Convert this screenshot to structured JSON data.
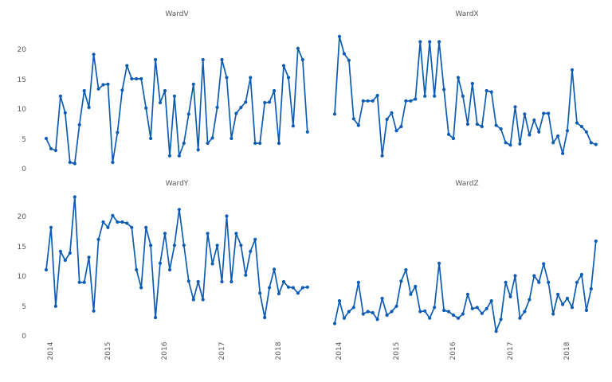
{
  "figure": {
    "background": "#ffffff",
    "text_color": "#595959",
    "line_color": "#0d5cb4"
  },
  "chart_data": {
    "type": "line",
    "layout": "2x2 small multiples, shared x and y axes, no gridlines, no legend, circle markers",
    "x_start": "2013-12",
    "x_interval": "month",
    "n_points": 56,
    "x_tick_labels": [
      "2014",
      "2015",
      "2016",
      "2017",
      "2018"
    ],
    "y_tick_labels": [
      "0",
      "5",
      "10",
      "15",
      "20"
    ],
    "ylim": [
      0,
      24
    ],
    "series": [
      {
        "name": "WardV",
        "values": [
          5.2,
          3.5,
          3.2,
          12.3,
          9.5,
          1.2,
          1.0,
          7.5,
          13.2,
          10.4,
          19.3,
          13.5,
          14.2,
          14.3,
          1.2,
          6.2,
          13.3,
          17.4,
          15.2,
          15.2,
          15.2,
          10.3,
          5.2,
          18.4,
          11.2,
          13.2,
          2.3,
          12.3,
          2.3,
          4.4,
          9.3,
          14.3,
          3.3,
          18.4,
          4.4,
          5.3,
          10.4,
          18.4,
          15.4,
          5.2,
          9.4,
          10.4,
          11.3,
          15.4,
          4.4,
          4.4,
          11.2,
          11.3,
          13.2,
          4.4,
          17.4,
          15.4,
          7.3,
          20.3,
          18.4,
          6.3
        ]
      },
      {
        "name": "WardX",
        "values": [
          9.3,
          22.3,
          19.4,
          18.3,
          8.5,
          7.4,
          11.5,
          11.5,
          11.5,
          12.4,
          2.3,
          8.4,
          9.5,
          6.5,
          7.2,
          11.5,
          11.5,
          11.8,
          21.4,
          12.3,
          21.4,
          12.3,
          21.4,
          13.4,
          5.9,
          5.2,
          15.4,
          12.3,
          7.6,
          14.4,
          7.6,
          7.2,
          13.2,
          13.0,
          7.4,
          6.8,
          4.5,
          4.1,
          10.5,
          4.3,
          9.3,
          5.8,
          8.3,
          6.3,
          9.4,
          9.4,
          4.5,
          5.6,
          2.7,
          6.5,
          16.7,
          7.8,
          7.2,
          6.3,
          4.5,
          4.2
        ]
      },
      {
        "name": "WardY",
        "values": [
          11.2,
          18.3,
          5.1,
          14.3,
          12.8,
          14.0,
          23.4,
          9.1,
          9.1,
          13.3,
          4.3,
          16.3,
          19.2,
          18.3,
          20.3,
          19.2,
          19.2,
          19.0,
          18.3,
          11.2,
          8.2,
          18.3,
          15.3,
          3.2,
          12.3,
          17.3,
          11.2,
          15.3,
          21.3,
          15.3,
          9.3,
          6.2,
          9.2,
          6.2,
          17.3,
          12.2,
          15.3,
          9.2,
          20.2,
          9.2,
          17.3,
          15.3,
          10.3,
          14.3,
          16.3,
          7.3,
          3.2,
          8.2,
          11.3,
          7.2,
          9.2,
          8.3,
          8.2,
          7.3,
          8.2,
          8.3
        ]
      },
      {
        "name": "WardZ",
        "values": [
          2.2,
          6.0,
          3.1,
          4.2,
          4.9,
          9.1,
          3.8,
          4.2,
          4.0,
          2.9,
          6.4,
          3.6,
          4.2,
          5.1,
          9.3,
          11.2,
          7.1,
          8.4,
          4.2,
          4.3,
          3.1,
          4.9,
          12.3,
          4.4,
          4.2,
          3.6,
          3.1,
          3.8,
          7.1,
          4.7,
          4.9,
          3.9,
          4.7,
          6.0,
          0.9,
          2.9,
          9.1,
          6.7,
          10.2,
          3.1,
          4.2,
          6.2,
          10.2,
          9.1,
          12.2,
          9.1,
          3.8,
          7.1,
          5.4,
          6.4,
          4.9,
          9.1,
          10.4,
          4.4,
          8.0,
          16.0
        ]
      }
    ]
  }
}
